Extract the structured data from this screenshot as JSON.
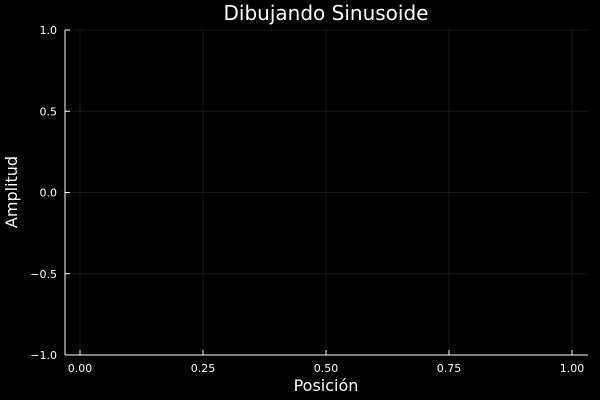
{
  "chart_data": {
    "type": "line",
    "title": "Dibujando Sinusoide",
    "xlabel": "Posición",
    "ylabel": "Amplitud",
    "xlim": [
      0,
      1
    ],
    "ylim": [
      -1,
      1
    ],
    "x_ticks": [
      0,
      0.25,
      0.5,
      0.75,
      1
    ],
    "x_tick_labels": [
      "0.00",
      "0.25",
      "0.50",
      "0.75",
      "1.00"
    ],
    "y_ticks": [
      -1,
      -0.5,
      0,
      0.5,
      1
    ],
    "y_tick_labels": [
      "−1.0",
      "−0.5",
      "0.0",
      "0.5",
      "1.0"
    ],
    "grid": true,
    "series": [],
    "colors": {
      "background": "#000000",
      "text": "#ffffff",
      "axis": "#ffffff"
    }
  }
}
